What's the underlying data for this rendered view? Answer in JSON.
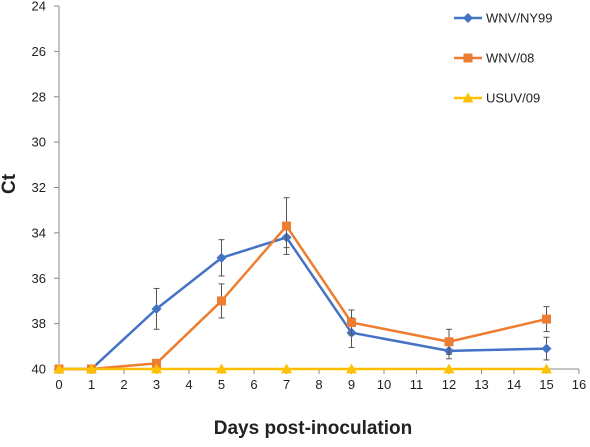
{
  "chart_data": {
    "type": "line",
    "title": "",
    "xlabel": "Days post-inoculation",
    "ylabel": "Ct",
    "xlim": [
      0,
      16
    ],
    "ylim": [
      24,
      40
    ],
    "y_inverted": true,
    "x_ticks": [
      0,
      1,
      2,
      3,
      4,
      5,
      6,
      7,
      8,
      9,
      10,
      11,
      12,
      13,
      14,
      15,
      16
    ],
    "y_ticks": [
      24,
      26,
      28,
      30,
      32,
      34,
      36,
      38,
      40
    ],
    "grid": false,
    "legend_position": "top-right",
    "series": [
      {
        "name": "WNV/NY99",
        "color": "#4472C4",
        "marker": "diamond",
        "x": [
          0,
          1,
          3,
          5,
          7,
          9,
          12,
          15
        ],
        "y": [
          40.0,
          40.0,
          37.35,
          35.1,
          34.2,
          38.4,
          39.2,
          39.1
        ],
        "err": [
          0,
          0,
          0.9,
          0.8,
          0.45,
          0.65,
          0.35,
          0.5
        ]
      },
      {
        "name": "WNV/08",
        "color": "#ED7D31",
        "marker": "square",
        "x": [
          0,
          1,
          3,
          5,
          7,
          9,
          12,
          15
        ],
        "y": [
          40.0,
          40.0,
          39.75,
          37.0,
          33.7,
          37.95,
          38.8,
          37.8
        ],
        "err": [
          0,
          0,
          0.15,
          0.75,
          1.25,
          0.55,
          0.55,
          0.55
        ]
      },
      {
        "name": "USUV/09",
        "color": "#FFC000",
        "marker": "triangle",
        "x": [
          0,
          1,
          3,
          5,
          7,
          9,
          12,
          15
        ],
        "y": [
          40,
          40,
          40,
          40,
          40,
          40,
          40,
          40
        ],
        "err": [
          0,
          0,
          0,
          0,
          0,
          0,
          0,
          0
        ]
      }
    ]
  }
}
